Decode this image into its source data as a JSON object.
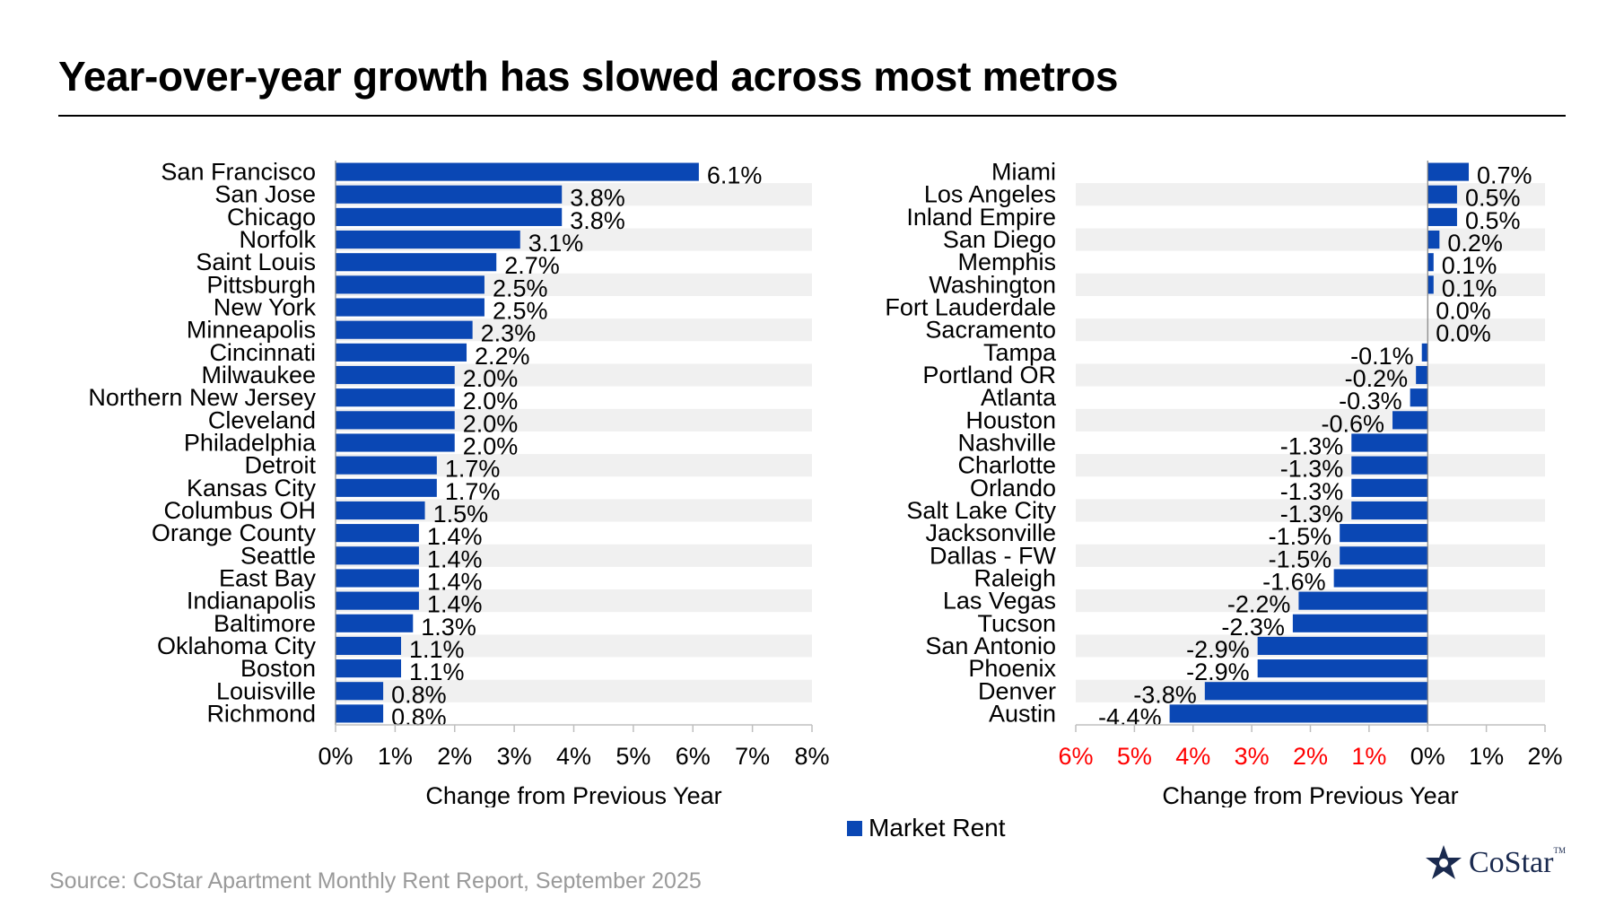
{
  "title": "Year-over-year growth has slowed across most metros",
  "source": "Source: CoStar Apartment Monthly Rent Report, September 2025",
  "legend": {
    "label": "Market Rent"
  },
  "logo": {
    "name": "CoStar",
    "tm": "TM"
  },
  "colors": {
    "bar": "#0a47b4",
    "stripe": "#f0f0f0",
    "negative_tick": "#ff0000",
    "axis": "#bfbfbf"
  },
  "chart_data": [
    {
      "type": "bar",
      "orientation": "horizontal",
      "xlabel": "Change from Previous Year",
      "xlim": [
        0,
        8
      ],
      "x_ticks": [
        "0%",
        "1%",
        "2%",
        "3%",
        "4%",
        "5%",
        "6%",
        "7%",
        "8%"
      ],
      "categories": [
        "San Francisco",
        "San Jose",
        "Chicago",
        "Norfolk",
        "Saint Louis",
        "Pittsburgh",
        "New York",
        "Minneapolis",
        "Cincinnati",
        "Milwaukee",
        "Northern New Jersey",
        "Cleveland",
        "Philadelphia",
        "Detroit",
        "Kansas City",
        "Columbus OH",
        "Orange County",
        "Seattle",
        "East Bay",
        "Indianapolis",
        "Baltimore",
        "Oklahoma City",
        "Boston",
        "Louisville",
        "Richmond"
      ],
      "values": [
        6.1,
        3.8,
        3.8,
        3.1,
        2.7,
        2.5,
        2.5,
        2.3,
        2.2,
        2.0,
        2.0,
        2.0,
        2.0,
        1.7,
        1.7,
        1.5,
        1.4,
        1.4,
        1.4,
        1.4,
        1.3,
        1.1,
        1.1,
        0.8,
        0.8
      ],
      "data_labels": [
        "6.1%",
        "3.8%",
        "3.8%",
        "3.1%",
        "2.7%",
        "2.5%",
        "2.5%",
        "2.3%",
        "2.2%",
        "2.0%",
        "2.0%",
        "2.0%",
        "2.0%",
        "1.7%",
        "1.7%",
        "1.5%",
        "1.4%",
        "1.4%",
        "1.4%",
        "1.4%",
        "1.3%",
        "1.1%",
        "1.1%",
        "0.8%",
        "0.8%"
      ]
    },
    {
      "type": "bar",
      "orientation": "horizontal",
      "xlabel": "Change from Previous Year",
      "xlim": [
        -6,
        2
      ],
      "x_ticks": [
        "6%",
        "5%",
        "4%",
        "3%",
        "2%",
        "1%",
        "0%",
        "1%",
        "2%"
      ],
      "categories": [
        "Miami",
        "Los Angeles",
        "Inland Empire",
        "San Diego",
        "Memphis",
        "Washington",
        "Fort Lauderdale",
        "Sacramento",
        "Tampa",
        "Portland OR",
        "Atlanta",
        "Houston",
        "Nashville",
        "Charlotte",
        "Orlando",
        "Salt Lake City",
        "Jacksonville",
        "Dallas - FW",
        "Raleigh",
        "Las Vegas",
        "Tucson",
        "San Antonio",
        "Phoenix",
        "Denver",
        "Austin"
      ],
      "values": [
        0.7,
        0.5,
        0.5,
        0.2,
        0.1,
        0.1,
        0.0,
        0.0,
        -0.1,
        -0.2,
        -0.3,
        -0.6,
        -1.3,
        -1.3,
        -1.3,
        -1.3,
        -1.5,
        -1.5,
        -1.6,
        -2.2,
        -2.3,
        -2.9,
        -2.9,
        -3.8,
        -4.4
      ],
      "data_labels": [
        "0.7%",
        "0.5%",
        "0.5%",
        "0.2%",
        "0.1%",
        "0.1%",
        "0.0%",
        "0.0%",
        "-0.1%",
        "-0.2%",
        "-0.3%",
        "-0.6%",
        "-1.3%",
        "-1.3%",
        "-1.3%",
        "-1.3%",
        "-1.5%",
        "-1.5%",
        "-1.6%",
        "-2.2%",
        "-2.3%",
        "-2.9%",
        "-2.9%",
        "-3.8%",
        "-4.4%"
      ]
    }
  ]
}
